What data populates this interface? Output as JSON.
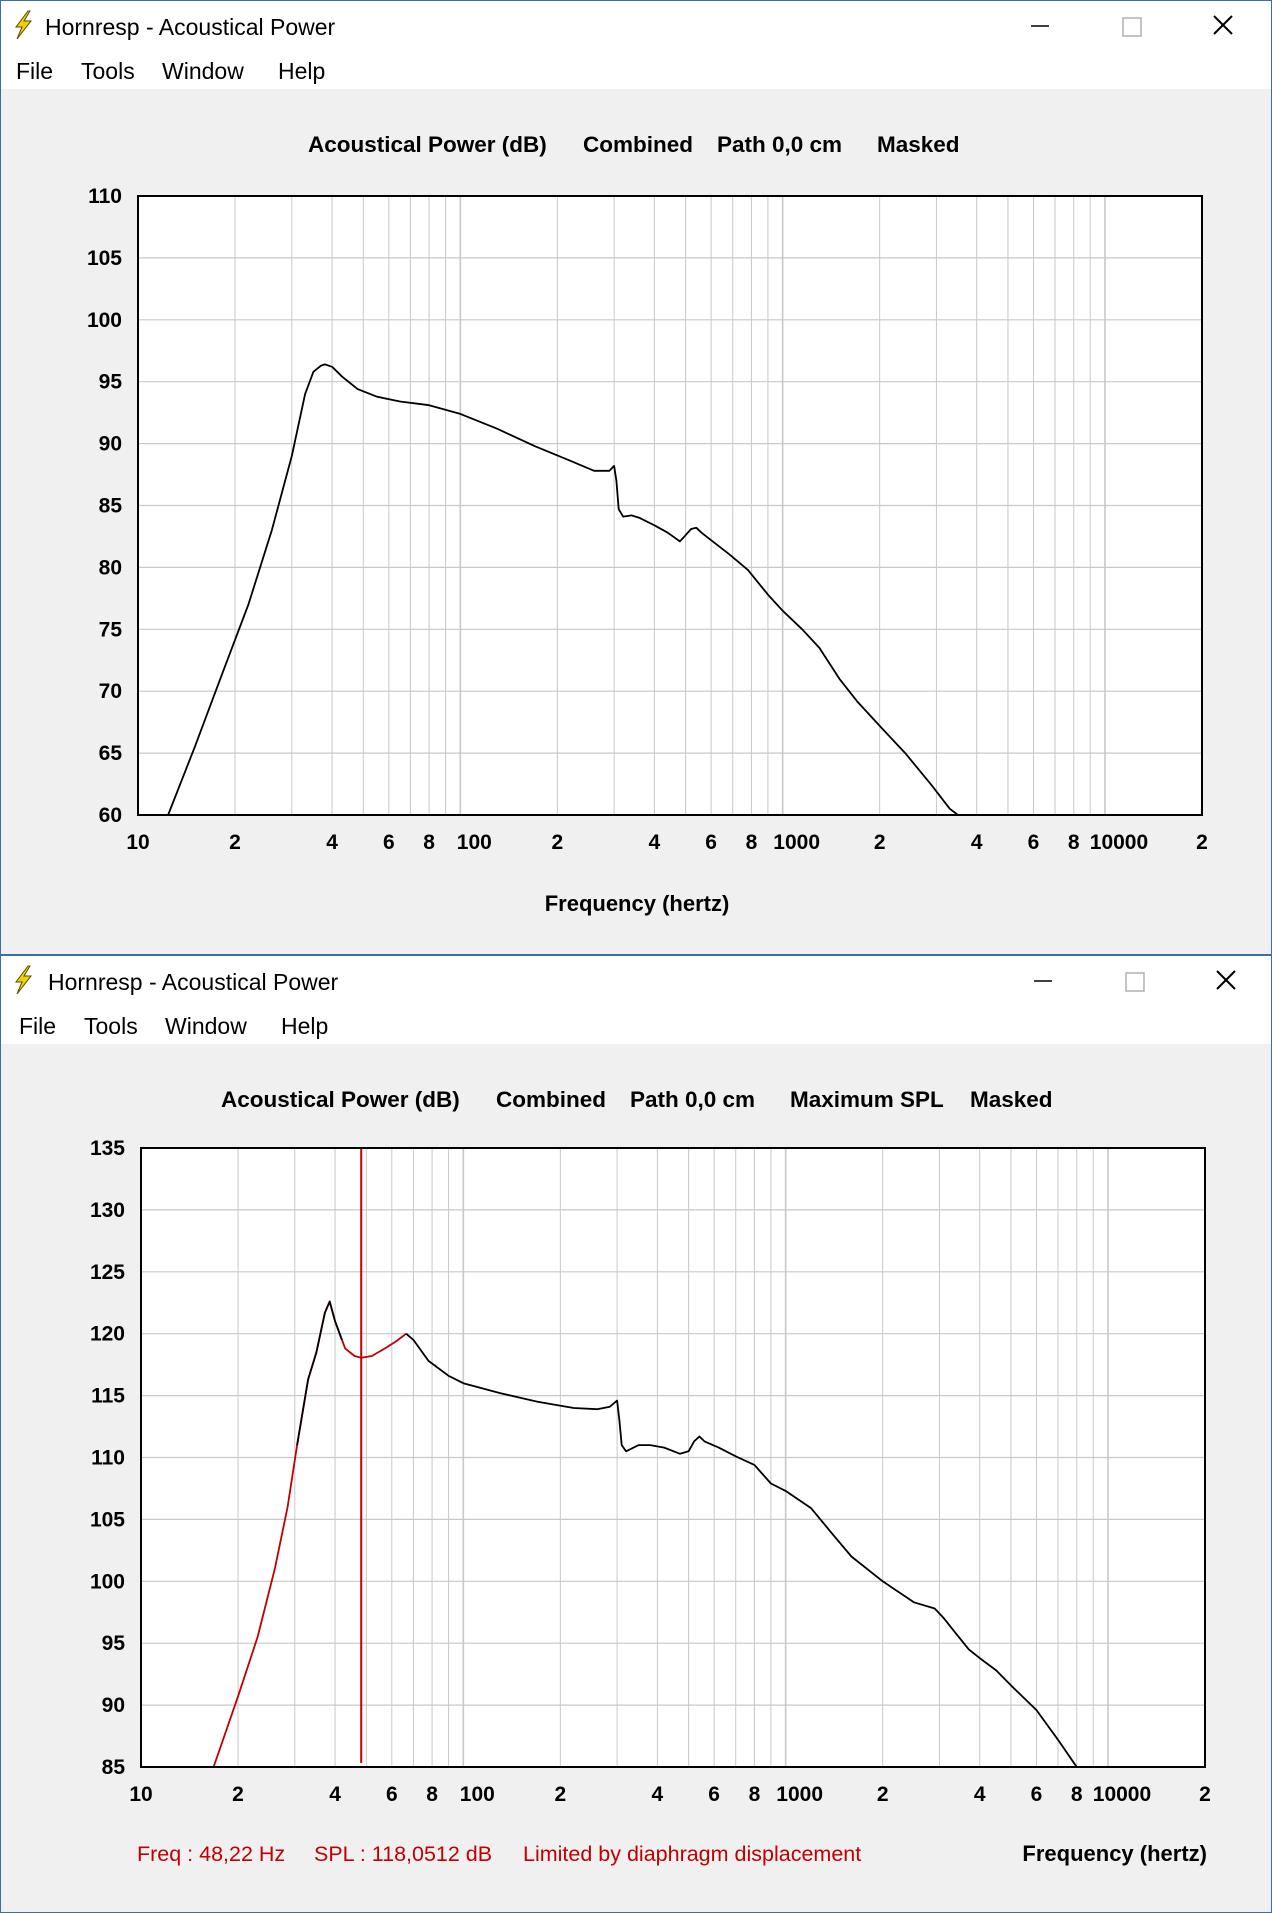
{
  "windows": [
    {
      "title": "Hornresp - Acoustical Power",
      "menu": [
        "File",
        "Tools",
        "Window",
        "Help"
      ],
      "header": [
        "Acoustical Power (dB)",
        "Combined",
        "Path 0,0 cm",
        "Masked"
      ],
      "x_axis_title": "Frequency (hertz)",
      "status": []
    },
    {
      "title": "Hornresp - Acoustical Power",
      "menu": [
        "File",
        "Tools",
        "Window",
        "Help"
      ],
      "header": [
        "Acoustical Power (dB)",
        "Combined",
        "Path 0,0 cm",
        "Maximum SPL",
        "Masked"
      ],
      "x_axis_title": "Frequency (hertz)",
      "status": [
        "Freq : 48,22 Hz",
        "SPL : 118,0512 dB",
        "Limited by diaphragm displacement"
      ]
    }
  ],
  "colors": {
    "curve": "#000000",
    "limited_curve": "#c00000",
    "cursor": "#c00000",
    "grid": "#c8c8c8",
    "window_border": "#3a6ea5",
    "icon": "#f0d000"
  },
  "icons": {
    "app": "lightning-bolt-icon",
    "minimize": "minimize-icon",
    "maximize": "maximize-icon",
    "close": "close-icon"
  },
  "chart_data": [
    {
      "type": "line",
      "title": "",
      "xlabel": "Frequency (hertz)",
      "ylabel": "",
      "x_scale": "log",
      "xlim": [
        10,
        20000
      ],
      "ylim": [
        60,
        110
      ],
      "yticks": [
        60,
        65,
        70,
        75,
        80,
        85,
        90,
        95,
        100,
        105,
        110
      ],
      "ytick_labels": [
        "60",
        "65",
        "70",
        "75",
        "80",
        "85",
        "90",
        "95",
        "100",
        "105",
        "110"
      ],
      "xticks": [
        10,
        20,
        40,
        60,
        80,
        100,
        200,
        400,
        600,
        800,
        1000,
        2000,
        4000,
        6000,
        8000,
        10000,
        20000
      ],
      "xtick_labels": [
        "10",
        "2",
        "4",
        "6",
        "8",
        "100",
        "2",
        "4",
        "6",
        "8",
        "1000",
        "2",
        "4",
        "6",
        "8",
        "10000",
        "2"
      ],
      "grid": true,
      "series": [
        {
          "color": "#000000",
          "x": [
            12.4,
            15,
            18,
            22,
            26,
            30,
            33,
            35,
            37,
            38,
            40,
            43,
            48,
            55,
            65,
            80,
            100,
            130,
            170,
            220,
            260,
            290,
            300,
            305,
            310,
            320,
            340,
            360,
            400,
            440,
            480,
            500,
            520,
            540,
            560,
            600,
            680,
            780,
            900,
            1000,
            1150,
            1300,
            1500,
            1700,
            2000,
            2400,
            2900,
            3300,
            3500
          ],
          "y": [
            60,
            65.5,
            71,
            77,
            83,
            89,
            94,
            95.8,
            96.3,
            96.4,
            96.2,
            95.4,
            94.4,
            93.8,
            93.4,
            93.1,
            92.4,
            91.2,
            89.8,
            88.6,
            87.8,
            87.8,
            88.2,
            87,
            84.7,
            84.1,
            84.2,
            84,
            83.4,
            82.8,
            82.1,
            82.6,
            83.1,
            83.2,
            82.8,
            82.2,
            81.1,
            79.8,
            77.8,
            76.5,
            75,
            73.5,
            71,
            69.2,
            67.2,
            65,
            62.4,
            60.5,
            60
          ]
        }
      ]
    },
    {
      "type": "line",
      "title": "",
      "xlabel": "Frequency (hertz)",
      "ylabel": "",
      "x_scale": "log",
      "xlim": [
        10,
        20000
      ],
      "ylim": [
        85,
        135
      ],
      "yticks": [
        85,
        90,
        95,
        100,
        105,
        110,
        115,
        120,
        125,
        130,
        135
      ],
      "ytick_labels": [
        "85",
        "90",
        "95",
        "100",
        "105",
        "110",
        "115",
        "120",
        "125",
        "130",
        "135"
      ],
      "xticks": [
        10,
        20,
        40,
        60,
        80,
        100,
        200,
        400,
        600,
        800,
        1000,
        2000,
        4000,
        6000,
        8000,
        10000,
        20000
      ],
      "xtick_labels": [
        "10",
        "2",
        "4",
        "6",
        "8",
        "100",
        "2",
        "4",
        "6",
        "8",
        "1000",
        "2",
        "4",
        "6",
        "8",
        "10000",
        "2"
      ],
      "grid": true,
      "cursor_x": 48.22,
      "series": [
        {
          "color": "#c00000",
          "x": [
            16.8,
            20,
            23,
            26,
            28.5,
            30.5,
            33,
            35,
            37.2,
            38.5,
            40,
            43,
            46,
            48.22,
            52,
            57,
            62,
            66.5
          ],
          "y": [
            85,
            90.7,
            95.5,
            101,
            106,
            111,
            116.3,
            118.5,
            121.7,
            122.6,
            121,
            118.8,
            118.2,
            118.05,
            118.2,
            118.8,
            119.4,
            120
          ]
        },
        {
          "color": "#000000",
          "x": [
            30.5,
            33,
            35,
            37.2,
            38.5,
            40,
            42
          ],
          "y": [
            111,
            116.3,
            118.5,
            121.7,
            122.6,
            121,
            119.5
          ]
        },
        {
          "color": "#000000",
          "x": [
            66.5,
            70,
            78,
            90,
            100,
            130,
            170,
            220,
            260,
            285,
            300,
            305,
            310,
            320,
            350,
            380,
            420,
            470,
            500,
            520,
            540,
            560,
            620,
            700,
            800,
            900,
            1000,
            1200,
            1400,
            1600,
            2000,
            2500,
            2900,
            3100,
            3300,
            3700,
            4000,
            4500,
            5000,
            6000,
            7000,
            8000
          ],
          "y": [
            120,
            119.5,
            117.8,
            116.6,
            116,
            115.2,
            114.5,
            114,
            113.9,
            114.1,
            114.6,
            113,
            111,
            110.5,
            111,
            111,
            110.8,
            110.3,
            110.5,
            111.3,
            111.7,
            111.3,
            110.8,
            110.1,
            109.4,
            107.9,
            107.3,
            105.9,
            103.8,
            102,
            100,
            98.3,
            97.8,
            97,
            96.1,
            94.5,
            93.8,
            92.8,
            91.6,
            89.6,
            87.2,
            85
          ]
        }
      ]
    }
  ]
}
